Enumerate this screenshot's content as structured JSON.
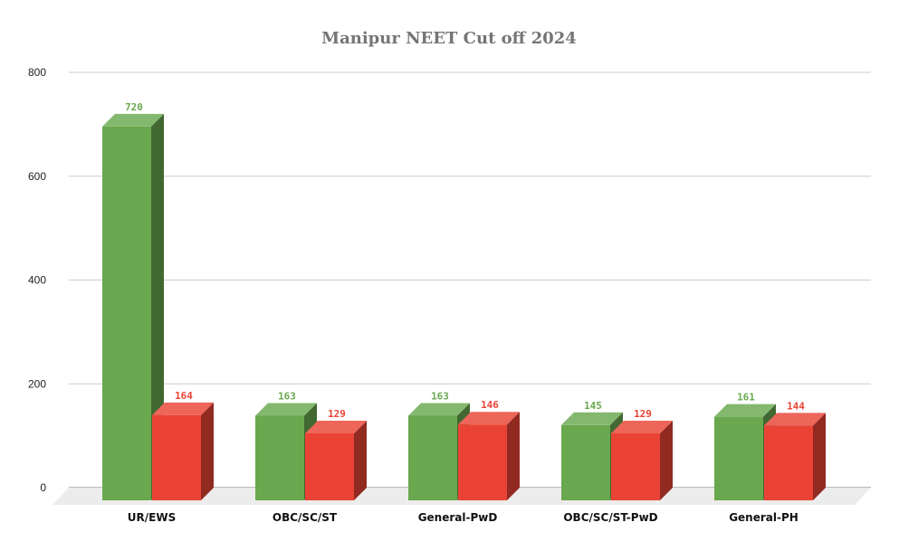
{
  "chart_data": {
    "type": "bar",
    "title": "Manipur NEET Cut off 2024",
    "categories": [
      "UR/EWS",
      "OBC/SC/ST",
      "General-PwD",
      "OBC/SC/ST-PwD",
      "General-PH"
    ],
    "series": [
      {
        "values": [
          720,
          163,
          163,
          145,
          161
        ],
        "color": "#6aa84f"
      },
      {
        "values": [
          164,
          129,
          146,
          129,
          144
        ],
        "color": "#ea4335"
      }
    ],
    "xlabel": "",
    "ylabel": "",
    "ylim": [
      0,
      800
    ],
    "yticks": [
      0,
      200,
      400,
      600,
      800
    ],
    "grid": true,
    "legend": "none",
    "style": "3d-column"
  }
}
